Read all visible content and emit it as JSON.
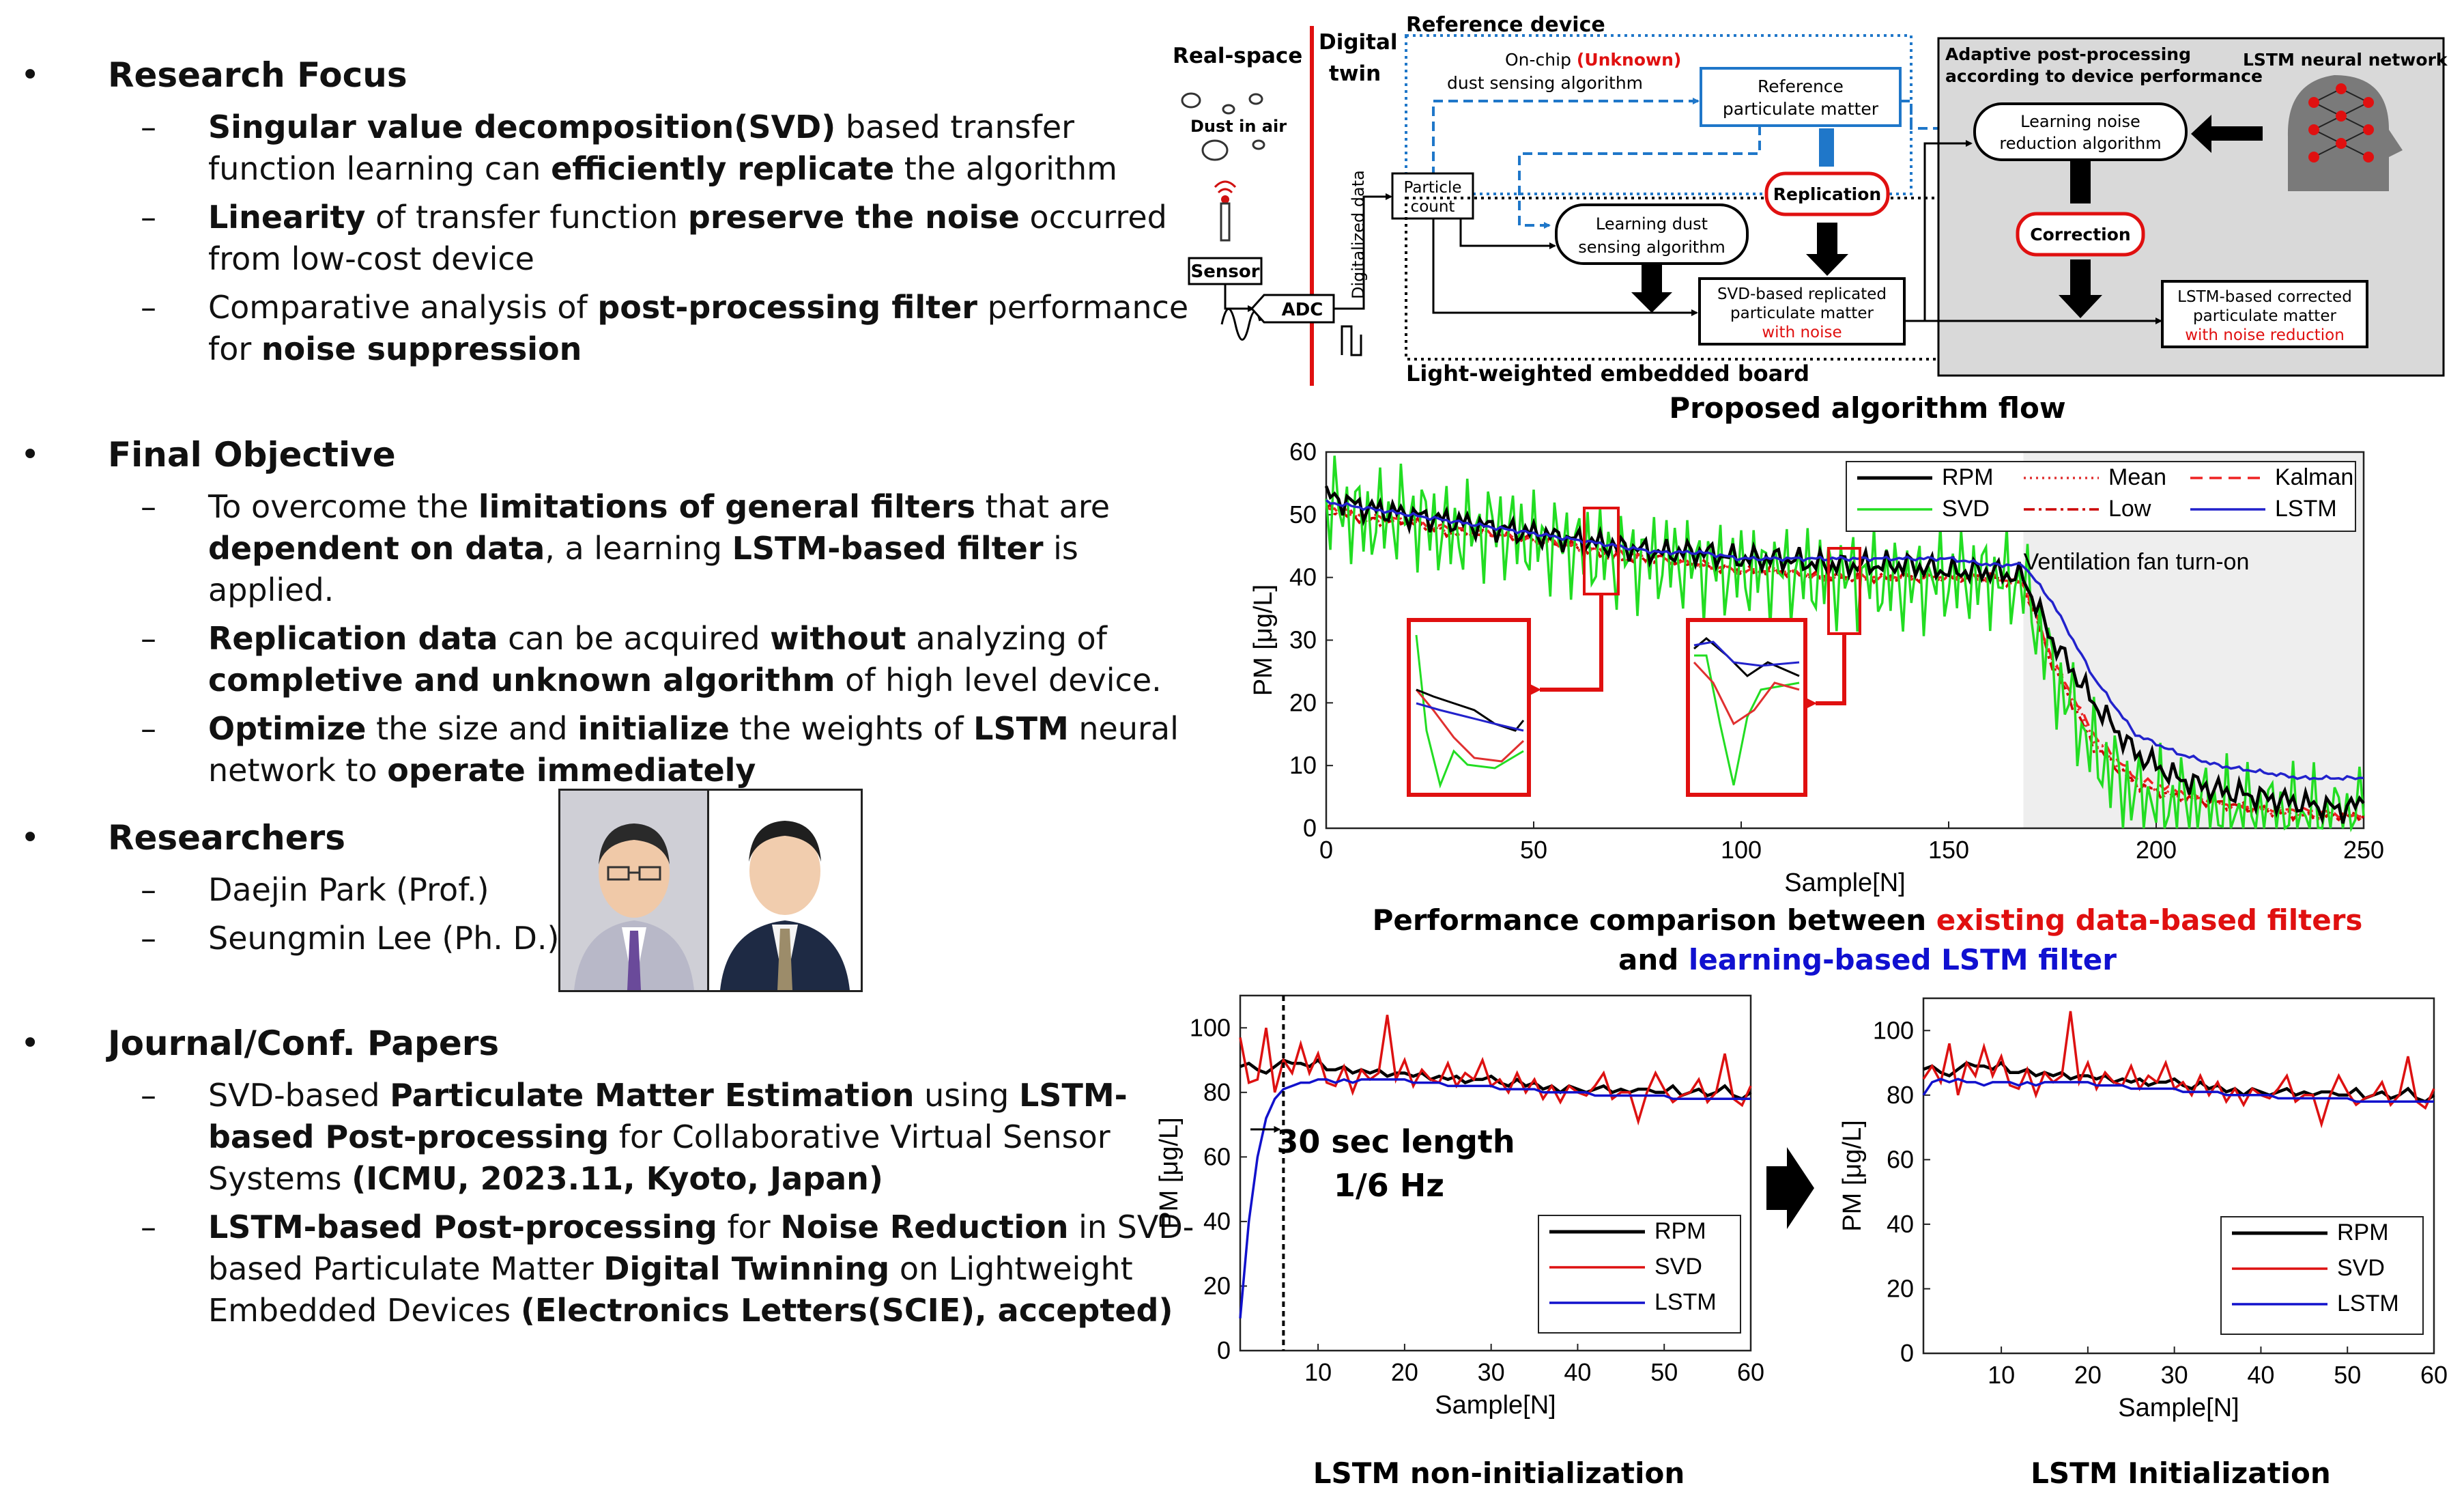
{
  "left": {
    "research_focus": {
      "title": "Research Focus",
      "items": [
        [
          {
            "t": "Singular value decomposition(SVD)",
            "b": true
          },
          {
            "t": " based transfer function learning can "
          },
          {
            "t": "efficiently replicate",
            "b": true
          },
          {
            "t": " the algorithm"
          }
        ],
        [
          {
            "t": "Linearity",
            "b": true
          },
          {
            "t": " of transfer function "
          },
          {
            "t": "preserve the noise",
            "b": true
          },
          {
            "t": " occurred from low-cost device"
          }
        ],
        [
          {
            "t": "Comparative analysis of "
          },
          {
            "t": "post-processing filter",
            "b": true
          },
          {
            "t": " performance for "
          },
          {
            "t": "noise suppression",
            "b": true
          }
        ]
      ]
    },
    "final_objective": {
      "title": "Final Objective",
      "items": [
        [
          {
            "t": "To overcome the "
          },
          {
            "t": "limitations of general filters",
            "b": true
          },
          {
            "t": " that are "
          },
          {
            "t": "dependent on data",
            "b": true
          },
          {
            "t": ", a learning "
          },
          {
            "t": "LSTM-based filter",
            "b": true
          },
          {
            "t": " is applied."
          }
        ],
        [
          {
            "t": "Replication data",
            "b": true
          },
          {
            "t": " can be acquired "
          },
          {
            "t": "without",
            "b": true
          },
          {
            "t": " analyzing of "
          },
          {
            "t": "completive and unknown algorithm",
            "b": true
          },
          {
            "t": " of high level device."
          }
        ],
        [
          {
            "t": "Optimize",
            "b": true
          },
          {
            "t": " the size and "
          },
          {
            "t": "initialize",
            "b": true
          },
          {
            "t": " the weights of "
          },
          {
            "t": "LSTM",
            "b": true
          },
          {
            "t": " neural network to "
          },
          {
            "t": "operate immediately",
            "b": true
          }
        ]
      ]
    },
    "researchers": {
      "title": "Researchers",
      "items": [
        [
          {
            "t": "Daejin Park (Prof.)"
          }
        ],
        [
          {
            "t": "Seungmin Lee (Ph. D.)"
          }
        ]
      ]
    },
    "papers": {
      "title": "Journal/Conf. Papers",
      "items": [
        [
          {
            "t": "SVD-based "
          },
          {
            "t": "Particulate Matter Estimation",
            "b": true
          },
          {
            "t": " using "
          },
          {
            "t": "LSTM-based Post-processing",
            "b": true
          },
          {
            "t": " for Collaborative Virtual Sensor Systems "
          },
          {
            "t": "(ICMU, 2023.11, Kyoto, Japan)",
            "b": true
          }
        ],
        [
          {
            "t": "LSTM-based Post-processing",
            "b": true
          },
          {
            "t": " for "
          },
          {
            "t": "Noise Reduction",
            "b": true
          },
          {
            "t": " in SVD-based Particulate Matter "
          },
          {
            "t": "Digital Twinning",
            "b": true
          },
          {
            "t": " on Lightweight Embedded Devices "
          },
          {
            "t": "(Electronics Letters(SCIE), accepted)",
            "b": true
          }
        ]
      ]
    },
    "bullet_char": "•",
    "dash_char": "–"
  },
  "diagram": {
    "caption": "Proposed algorithm flow",
    "real_space": "Real-space",
    "digital_twin_1": "Digital",
    "digital_twin_2": "twin",
    "dust_in_air": "Dust in air",
    "sensor": "Sensor",
    "adc": "ADC",
    "digitalized_data": "Digitalized data",
    "reference_device": "Reference device",
    "onchip_1": "On-chip ",
    "onchip_unknown": "(Unknown)",
    "onchip_2": "dust sensing algorithm",
    "ref_pm_1": "Reference",
    "ref_pm_2": "particulate matter",
    "particle_count_1": "Particle",
    "particle_count_2": "count",
    "learning_dust_1": "Learning dust",
    "learning_dust_2": "sensing algorithm",
    "replication": "Replication",
    "svd_box_1": "SVD-based replicated",
    "svd_box_2": "particulate matter",
    "svd_box_3": "with noise",
    "embedded_board": "Light-weighted embedded board",
    "adaptive_1": "Adaptive post-processing",
    "adaptive_2": "according to device performance",
    "lstm_nn": "LSTM neural network",
    "learning_noise_1": "Learning noise",
    "learning_noise_2": "reduction algorithm",
    "correction": "Correction",
    "lstm_box_1": "LSTM-based corrected",
    "lstm_box_2": "particulate matter",
    "lstm_box_3": "with noise reduction"
  },
  "chart_data": [
    {
      "type": "line",
      "ylabel": "PM [μg/L]",
      "xlabel": "Sample[N]",
      "xlim": [
        0,
        250
      ],
      "ylim": [
        0,
        60
      ],
      "xticks": [
        0,
        50,
        100,
        150,
        200,
        250
      ],
      "yticks": [
        0,
        10,
        20,
        30,
        40,
        50,
        60
      ],
      "legend": [
        "RPM",
        "Mean",
        "Kalman",
        "SVD",
        "Low",
        "LSTM"
      ],
      "legend_position": "top-right",
      "annotation": "Ventilation fan turn-on",
      "shaded_region": [
        168,
        250
      ],
      "x": [
        0,
        10,
        20,
        30,
        40,
        50,
        60,
        70,
        80,
        90,
        100,
        110,
        120,
        130,
        140,
        150,
        160,
        168,
        175,
        185,
        195,
        205,
        215,
        225,
        235,
        245,
        250
      ],
      "series": [
        {
          "name": "RPM",
          "color": "#000000",
          "values": [
            53,
            51,
            50,
            49,
            48,
            47,
            46,
            45,
            44,
            44,
            43,
            43,
            42,
            42,
            42,
            41,
            41,
            40,
            30,
            20,
            12,
            8,
            6,
            5,
            4,
            3,
            4
          ]
        },
        {
          "name": "SVD",
          "color": "#22dd22",
          "values": [
            52,
            49,
            50,
            47,
            48,
            46,
            45,
            43,
            43,
            42,
            41,
            41,
            40,
            40,
            39,
            40,
            40,
            39,
            25,
            12,
            5,
            4,
            3,
            2,
            2,
            1,
            2
          ]
        },
        {
          "name": "Mean",
          "color": "#e03030",
          "values": [
            51,
            49,
            49,
            47,
            47,
            46,
            45,
            43,
            43,
            42,
            41,
            41,
            40,
            40,
            40,
            40,
            40,
            39,
            27,
            14,
            7,
            5,
            4,
            3,
            2,
            2,
            2
          ]
        },
        {
          "name": "Low",
          "color": "#cc0000",
          "values": [
            51,
            49,
            49,
            47,
            47,
            46,
            45,
            43,
            43,
            42,
            41,
            41,
            40,
            40,
            40,
            40,
            40,
            39,
            26,
            13,
            7,
            5,
            4,
            3,
            2,
            2,
            2
          ]
        },
        {
          "name": "Kalman",
          "color": "#ee2222",
          "values": [
            51,
            50,
            49,
            48,
            47,
            46,
            45,
            44,
            43,
            42,
            41,
            41,
            40,
            40,
            40,
            40,
            40,
            39,
            27,
            15,
            8,
            6,
            4,
            3,
            3,
            2,
            2
          ]
        },
        {
          "name": "LSTM",
          "color": "#2222cc",
          "values": [
            52,
            51,
            50,
            49,
            48,
            47,
            46,
            45,
            44,
            44,
            43,
            43,
            43,
            43,
            43,
            43,
            42,
            42,
            36,
            24,
            15,
            12,
            10,
            9,
            8,
            8,
            8
          ]
        }
      ],
      "caption_1": "Performance comparison between ",
      "caption_red": "existing data-based filters",
      "caption_2": "and ",
      "caption_blue": "learning-based LSTM filter"
    },
    {
      "type": "line",
      "ylabel": "PM [μg/L]",
      "xlabel": "Sample[N]",
      "xlim": [
        1,
        60
      ],
      "ylim": [
        0,
        110
      ],
      "xticks": [
        10,
        20,
        30,
        40,
        50,
        60
      ],
      "yticks": [
        0,
        20,
        40,
        60,
        80,
        100
      ],
      "legend": [
        "RPM",
        "SVD",
        "LSTM"
      ],
      "legend_position": "bottom-right",
      "annotation_1": "30 sec length",
      "annotation_2": "1/6 Hz",
      "marker_x": 6,
      "x": [
        1,
        2,
        3,
        4,
        5,
        6,
        7,
        8,
        9,
        10,
        11,
        12,
        13,
        14,
        15,
        16,
        17,
        18,
        19,
        20,
        21,
        22,
        23,
        24,
        25,
        26,
        27,
        28,
        29,
        30,
        31,
        32,
        33,
        34,
        35,
        36,
        37,
        38,
        39,
        40,
        41,
        42,
        43,
        44,
        45,
        46,
        47,
        48,
        49,
        50,
        51,
        52,
        53,
        54,
        55,
        56,
        57,
        58,
        59,
        60
      ],
      "series": [
        {
          "name": "RPM",
          "color": "#000000",
          "values": [
            88,
            89,
            87,
            86,
            88,
            90,
            89,
            89,
            88,
            90,
            87,
            87,
            88,
            86,
            87,
            86,
            87,
            85,
            86,
            86,
            85,
            86,
            84,
            85,
            84,
            85,
            83,
            84,
            84,
            85,
            83,
            82,
            84,
            82,
            83,
            81,
            82,
            80,
            82,
            81,
            80,
            81,
            82,
            80,
            81,
            80,
            81,
            81,
            80,
            80,
            82,
            79,
            80,
            81,
            79,
            80,
            82,
            79,
            78,
            80
          ]
        },
        {
          "name": "SVD",
          "color": "#dd1111",
          "values": [
            97,
            83,
            84,
            100,
            80,
            90,
            86,
            95,
            86,
            92,
            83,
            82,
            88,
            80,
            87,
            84,
            86,
            104,
            84,
            90,
            82,
            87,
            84,
            83,
            89,
            82,
            86,
            84,
            90,
            82,
            84,
            80,
            86,
            80,
            84,
            78,
            82,
            77,
            82,
            80,
            79,
            82,
            86,
            78,
            80,
            80,
            71,
            80,
            86,
            81,
            77,
            79,
            80,
            84,
            77,
            80,
            92,
            78,
            76,
            82
          ]
        },
        {
          "name": "LSTM",
          "color": "#1111cc",
          "values": [
            10,
            40,
            60,
            72,
            78,
            81,
            82,
            83,
            83,
            84,
            84,
            83,
            84,
            83,
            84,
            84,
            84,
            84,
            84,
            84,
            83,
            83,
            83,
            83,
            82,
            82,
            82,
            82,
            82,
            82,
            81,
            81,
            81,
            81,
            81,
            80,
            80,
            80,
            80,
            80,
            80,
            79,
            79,
            79,
            79,
            79,
            79,
            79,
            79,
            79,
            78,
            78,
            78,
            78,
            78,
            78,
            78,
            78,
            78,
            78
          ]
        }
      ],
      "caption": "LSTM non-initialization"
    },
    {
      "type": "line",
      "ylabel": "PM [μg/L]",
      "xlabel": "Sample[N]",
      "xlim": [
        1,
        60
      ],
      "ylim": [
        0,
        110
      ],
      "xticks": [
        10,
        20,
        30,
        40,
        50,
        60
      ],
      "yticks": [
        0,
        20,
        40,
        60,
        80,
        100
      ],
      "legend": [
        "RPM",
        "SVD",
        "LSTM"
      ],
      "legend_position": "bottom-right",
      "x": [
        1,
        2,
        3,
        4,
        5,
        6,
        7,
        8,
        9,
        10,
        11,
        12,
        13,
        14,
        15,
        16,
        17,
        18,
        19,
        20,
        21,
        22,
        23,
        24,
        25,
        26,
        27,
        28,
        29,
        30,
        31,
        32,
        33,
        34,
        35,
        36,
        37,
        38,
        39,
        40,
        41,
        42,
        43,
        44,
        45,
        46,
        47,
        48,
        49,
        50,
        51,
        52,
        53,
        54,
        55,
        56,
        57,
        58,
        59,
        60
      ],
      "series": [
        {
          "name": "RPM",
          "color": "#000000",
          "values": [
            88,
            89,
            87,
            86,
            88,
            90,
            89,
            89,
            88,
            90,
            87,
            87,
            88,
            86,
            87,
            86,
            87,
            85,
            86,
            86,
            85,
            86,
            84,
            85,
            84,
            85,
            83,
            84,
            84,
            85,
            83,
            82,
            84,
            82,
            83,
            81,
            82,
            80,
            82,
            81,
            80,
            81,
            82,
            80,
            81,
            80,
            81,
            81,
            80,
            80,
            82,
            79,
            80,
            81,
            79,
            80,
            82,
            79,
            78,
            80
          ]
        },
        {
          "name": "SVD",
          "color": "#dd1111",
          "values": [
            85,
            89,
            84,
            96,
            80,
            90,
            86,
            95,
            86,
            92,
            83,
            82,
            88,
            80,
            87,
            84,
            86,
            106,
            84,
            90,
            82,
            87,
            84,
            83,
            89,
            82,
            86,
            84,
            90,
            82,
            84,
            80,
            86,
            80,
            84,
            78,
            82,
            77,
            82,
            80,
            79,
            82,
            86,
            78,
            80,
            80,
            71,
            80,
            86,
            81,
            77,
            79,
            80,
            84,
            77,
            80,
            92,
            78,
            76,
            82
          ]
        },
        {
          "name": "LSTM",
          "color": "#1111cc",
          "values": [
            80,
            84,
            85,
            84,
            85,
            84,
            84,
            83,
            84,
            84,
            84,
            83,
            84,
            83,
            84,
            84,
            84,
            84,
            84,
            84,
            83,
            83,
            83,
            83,
            82,
            82,
            82,
            82,
            82,
            82,
            81,
            81,
            81,
            81,
            81,
            80,
            80,
            80,
            80,
            80,
            80,
            79,
            79,
            79,
            79,
            79,
            79,
            79,
            79,
            79,
            78,
            78,
            78,
            78,
            78,
            78,
            78,
            78,
            78,
            78
          ]
        }
      ],
      "caption": "LSTM Initialization"
    }
  ]
}
